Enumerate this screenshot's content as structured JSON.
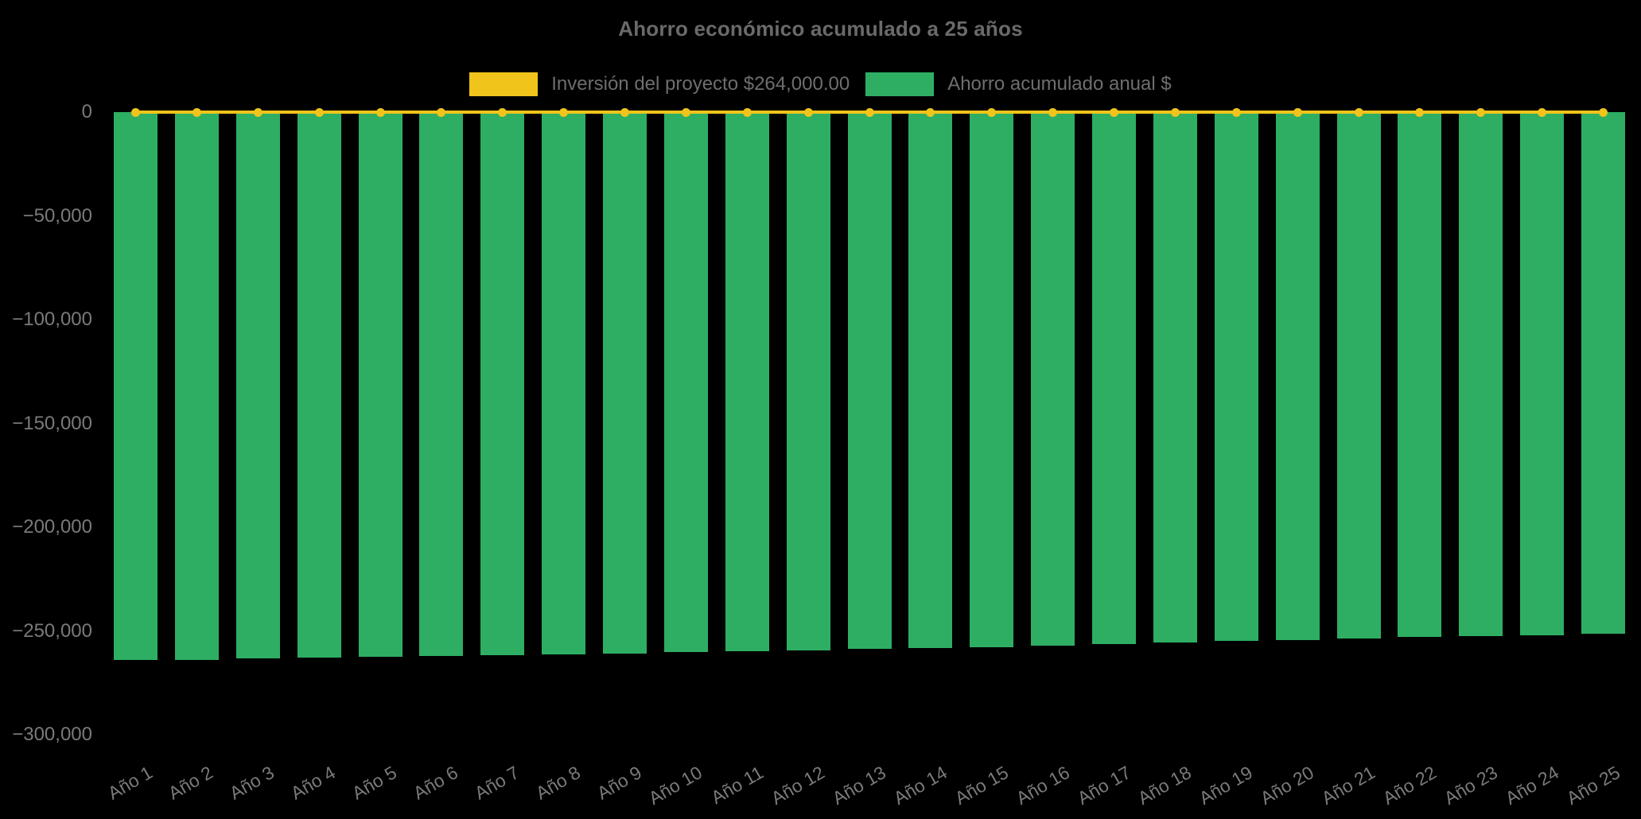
{
  "chart_data": {
    "type": "bar",
    "title": "Ahorro económico acumulado a 25 años",
    "categories": [
      "Año 1",
      "Año 2",
      "Año 3",
      "Año 4",
      "Año 5",
      "Año 6",
      "Año 7",
      "Año 8",
      "Año 9",
      "Año 10",
      "Año 11",
      "Año 12",
      "Año 13",
      "Año 14",
      "Año 15",
      "Año 16",
      "Año 17",
      "Año 18",
      "Año 19",
      "Año 20",
      "Año 21",
      "Año 22",
      "Año 23",
      "Año 24",
      "Año 25"
    ],
    "series": [
      {
        "name": "Inversión del proyecto $264,000.00",
        "type": "line",
        "color": "#F0C41B",
        "marker": "circle",
        "values": [
          0,
          0,
          0,
          0,
          0,
          0,
          0,
          0,
          0,
          0,
          0,
          0,
          0,
          0,
          0,
          0,
          0,
          0,
          0,
          0,
          0,
          0,
          0,
          0,
          0
        ]
      },
      {
        "name": "Ahorro acumulado anual $",
        "type": "bar",
        "color": "#2EAE63",
        "values": [
          -264000,
          -263800,
          -263400,
          -263000,
          -262600,
          -262200,
          -261800,
          -261300,
          -260800,
          -260300,
          -259800,
          -259300,
          -258800,
          -258200,
          -257700,
          -257100,
          -256300,
          -255500,
          -254900,
          -254300,
          -253600,
          -253000,
          -252500,
          -252000,
          -251500
        ]
      }
    ],
    "ytick_labels": [
      "0",
      "−50,000",
      "−100,000",
      "−150,000",
      "−200,000",
      "−250,000",
      "−300,000"
    ],
    "ytick_values": [
      0,
      -50000,
      -100000,
      -150000,
      -200000,
      -250000,
      -300000
    ],
    "ylim": [
      -300000,
      0
    ],
    "xlabel": "",
    "ylabel": "",
    "grid": false,
    "legend_position": "top-center",
    "background": "#000000",
    "text_color": "#7a7a7a"
  }
}
